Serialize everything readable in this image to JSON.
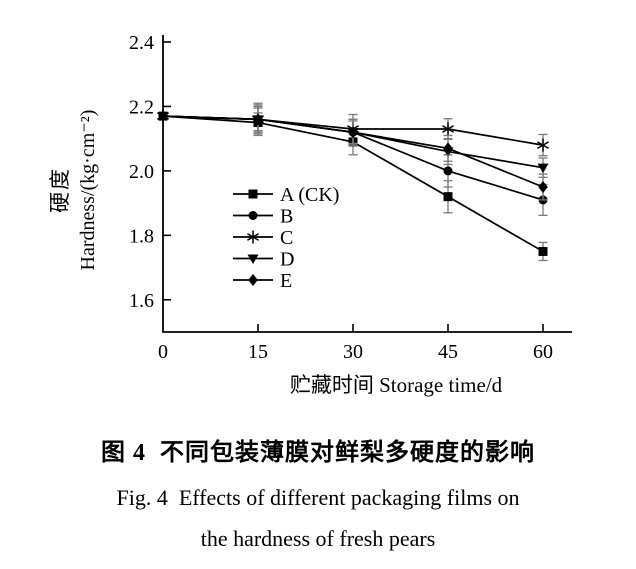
{
  "chart_data": {
    "type": "line",
    "title": "",
    "xlabel": "贮藏时间 Storage time/d",
    "ylabel_cn": "硬度",
    "ylabel_en": "Hardness/(kg·cm⁻²)",
    "x": [
      0,
      15,
      30,
      45,
      60
    ],
    "xticks": [
      0,
      15,
      30,
      45,
      60
    ],
    "yticks": [
      1.6,
      1.8,
      2.0,
      2.2,
      2.4
    ],
    "xlim": [
      0,
      64.5
    ],
    "ylim": [
      1.5,
      2.42
    ],
    "grid": false,
    "legend_position": "inside-bottom-center",
    "colors": {
      "line": "#000000",
      "marker": "#000000",
      "error_bar": "#7a7a7a",
      "text": "#000000",
      "background": "#ffffff"
    },
    "series": [
      {
        "name": "A (CK)",
        "marker": "square",
        "values": [
          2.17,
          2.15,
          2.09,
          1.92,
          1.75
        ],
        "errors": [
          0,
          0.03,
          0.04,
          0.05,
          0.028
        ]
      },
      {
        "name": "B",
        "marker": "circle",
        "values": [
          2.17,
          2.16,
          2.12,
          2.0,
          1.91
        ],
        "errors": [
          0,
          0.04,
          0.035,
          0.05,
          0.048
        ]
      },
      {
        "name": "C",
        "marker": "asterisk",
        "values": [
          2.17,
          2.16,
          2.13,
          2.13,
          2.08
        ],
        "errors": [
          0,
          0.05,
          0.045,
          0.032,
          0.033
        ]
      },
      {
        "name": "D",
        "marker": "triangle-down",
        "values": [
          2.17,
          2.16,
          2.12,
          2.06,
          2.01
        ],
        "errors": [
          0,
          0.035,
          0.04,
          0.04,
          0.03
        ]
      },
      {
        "name": "E",
        "marker": "diamond",
        "values": [
          2.17,
          2.16,
          2.12,
          2.07,
          1.95
        ],
        "errors": [
          0,
          0.045,
          0.04,
          0.04,
          0.04
        ]
      }
    ]
  },
  "caption": {
    "line1_cn": "图 4  不同包装薄膜对鲜梨多硬度的影响",
    "line2_en": "Fig. 4  Effects of different packaging films on",
    "line3_en": "the hardness of fresh pears"
  }
}
